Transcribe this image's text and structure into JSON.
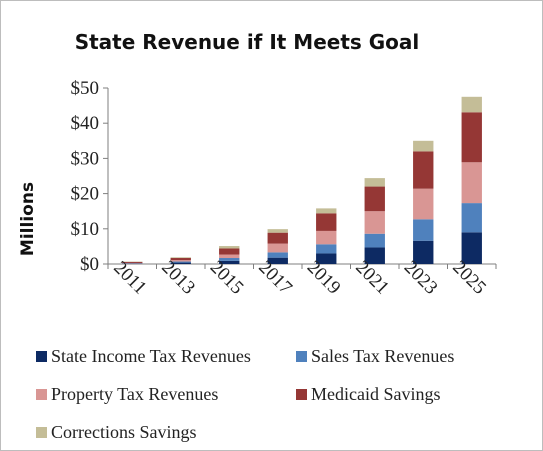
{
  "chart_data": {
    "type": "bar",
    "stacked": true,
    "title": "State Revenue if It Meets Goal",
    "ylabel": "Millions",
    "xlabel": "",
    "ylim": [
      0,
      50
    ],
    "yticks": [
      "$0",
      "$10",
      "$20",
      "$30",
      "$40",
      "$50"
    ],
    "ytick_values": [
      0,
      10,
      20,
      30,
      40,
      50
    ],
    "categories": [
      "2011",
      "2013",
      "2015",
      "2017",
      "2019",
      "2021",
      "2023",
      "2025"
    ],
    "series": [
      {
        "name": "State Income Tax Revenues",
        "color": "#0d2a63",
        "values": [
          0.1,
          0.4,
          0.9,
          1.8,
          3.0,
          4.7,
          6.6,
          9.0
        ]
      },
      {
        "name": "Sales Tax Revenues",
        "color": "#4f81bd",
        "values": [
          0.1,
          0.3,
          0.8,
          1.5,
          2.6,
          3.9,
          6.1,
          8.3
        ]
      },
      {
        "name": "Property Tax Revenues",
        "color": "#d99694",
        "values": [
          0.1,
          0.4,
          1.0,
          2.5,
          3.8,
          6.4,
          8.7,
          11.6
        ]
      },
      {
        "name": "Medicaid Savings",
        "color": "#953735",
        "values": [
          0.3,
          0.6,
          1.7,
          3.1,
          5.0,
          7.0,
          10.6,
          14.2
        ]
      },
      {
        "name": "Corrections Savings",
        "color": "#c4bd97",
        "values": [
          0.1,
          0.2,
          0.7,
          1.0,
          1.4,
          2.4,
          3.0,
          4.4
        ]
      }
    ],
    "grid": false,
    "legend_position": "bottom"
  }
}
